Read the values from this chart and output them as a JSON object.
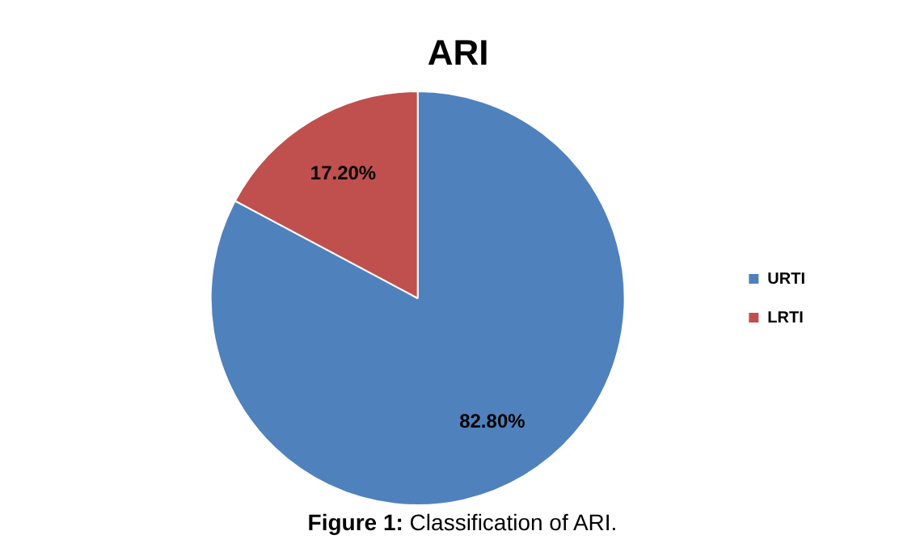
{
  "chart_data": {
    "type": "pie",
    "title": "ARI",
    "categories": [
      "URTI",
      "LRTI"
    ],
    "values": [
      82.8,
      17.2
    ],
    "colors": [
      "#4f81bd",
      "#c0504d"
    ],
    "value_labels": [
      "82.80%",
      "17.20%"
    ],
    "legend": "right",
    "annotations": [
      "Figure 1: Classification of ARI."
    ]
  }
}
